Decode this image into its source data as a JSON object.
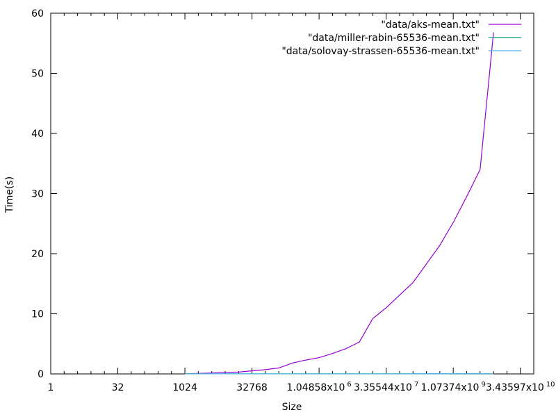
{
  "chart_data": {
    "type": "line",
    "xlabel": "Size",
    "ylabel": "Time(s)",
    "xscale": "log2",
    "xlim": [
      1,
      68719476736
    ],
    "ylim": [
      0,
      60
    ],
    "grid": false,
    "legend_position": "top-right",
    "x_ticks": [
      {
        "value": 1,
        "label": "1",
        "sup": ""
      },
      {
        "value": 32,
        "label": "32",
        "sup": ""
      },
      {
        "value": 1024,
        "label": "1024",
        "sup": ""
      },
      {
        "value": 32768,
        "label": "32768",
        "sup": ""
      },
      {
        "value": 1048576,
        "label": "1.04858x10",
        "sup": "6"
      },
      {
        "value": 33554432,
        "label": "3.35544x10",
        "sup": "7"
      },
      {
        "value": 1073741824,
        "label": "1.07374x10",
        "sup": "9"
      },
      {
        "value": 34359738368,
        "label": "3.43597x10",
        "sup": "10"
      }
    ],
    "y_ticks": [
      0,
      10,
      20,
      30,
      40,
      50,
      60
    ],
    "series": [
      {
        "name": "\"data/aks-mean.txt\"",
        "color": "#9400d3",
        "points": [
          [
            1024,
            0.02
          ],
          [
            4096,
            0.15
          ],
          [
            16384,
            0.3
          ],
          [
            65536,
            0.7
          ],
          [
            131072,
            1.0
          ],
          [
            262144,
            1.8
          ],
          [
            524288,
            2.3
          ],
          [
            1048576,
            2.7
          ],
          [
            2097152,
            3.4
          ],
          [
            4194304,
            4.2
          ],
          [
            8388608,
            5.3
          ],
          [
            16777216,
            9.2
          ],
          [
            33554432,
            11.0
          ],
          [
            67108864,
            13.1
          ],
          [
            134217728,
            15.2
          ],
          [
            268435456,
            18.3
          ],
          [
            536870912,
            21.4
          ],
          [
            1073741824,
            25.2
          ],
          [
            2147483648,
            29.5
          ],
          [
            4294967296,
            34.0
          ],
          [
            8589934592,
            56.8
          ]
        ]
      },
      {
        "name": "\"data/miller-rabin-65536-mean.txt\"",
        "color": "#009e73",
        "points": [
          [
            1024,
            0.01
          ],
          [
            65536,
            0.01
          ],
          [
            1048576,
            0.02
          ],
          [
            33554432,
            0.02
          ],
          [
            1073741824,
            0.03
          ],
          [
            8589934592,
            0.03
          ]
        ]
      },
      {
        "name": "\"data/solovay-strassen-65536-mean.txt\"",
        "color": "#56b4e9",
        "points": [
          [
            1024,
            0.01
          ],
          [
            65536,
            0.01
          ],
          [
            1048576,
            0.02
          ],
          [
            33554432,
            0.02
          ],
          [
            1073741824,
            0.03
          ],
          [
            8589934592,
            0.03
          ]
        ]
      }
    ]
  }
}
